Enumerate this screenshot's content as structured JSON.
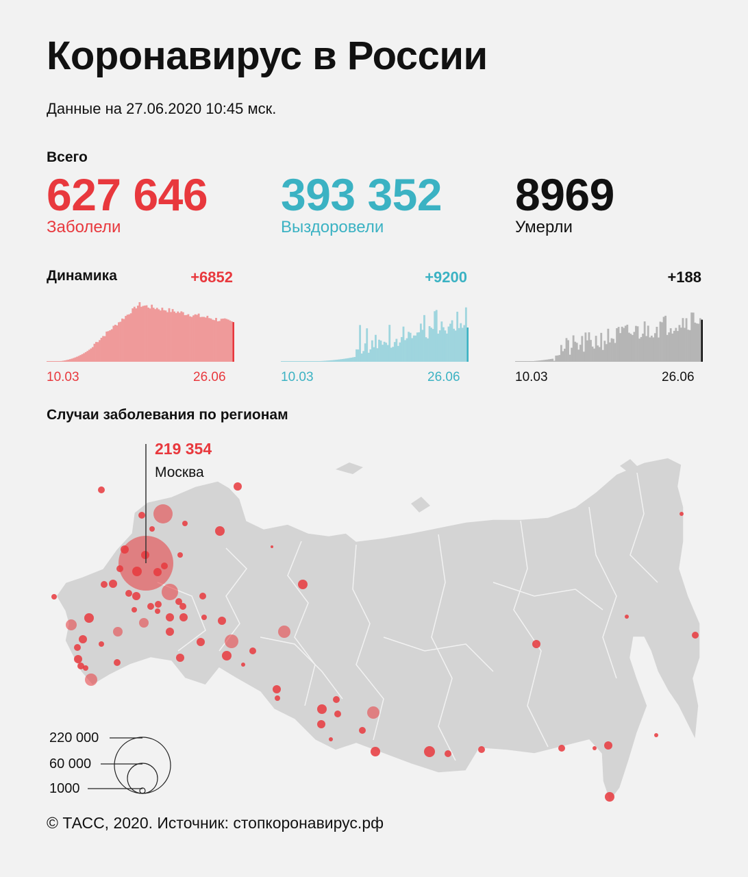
{
  "title": "Коронавирус в России",
  "subtitle": "Данные на 27.06.2020 10:45 мск.",
  "totals_label": "Всего",
  "totals": {
    "cases": {
      "value": "627 646",
      "label": "Заболели",
      "color": "#e8383d"
    },
    "recovered": {
      "value": "393 352",
      "label": "Выздоровели",
      "color": "#3bb2c3"
    },
    "deaths": {
      "value": "8969",
      "label": "Умерли",
      "color": "#111111"
    }
  },
  "dynamics_label": "Динамика",
  "dynamics": {
    "cases": {
      "delta": "+6852",
      "start": "10.03",
      "end": "26.06",
      "fill": "#ef9a9a",
      "accent": "#e8383d"
    },
    "recovered": {
      "delta": "+9200",
      "start": "10.03",
      "end": "26.06",
      "fill": "#9fd5de",
      "accent": "#3bb2c3"
    },
    "deaths": {
      "delta": "+188",
      "start": "10.03",
      "end": "26.06",
      "fill": "#b5b5b5",
      "accent": "#111111"
    }
  },
  "map": {
    "title": "Случаи заболевания по регионам",
    "land_color": "#d4d4d4",
    "marker_color": "#e8383d",
    "moscow": {
      "value": "219 354",
      "name": "Москва"
    },
    "legend": [
      "220 000",
      "60 000",
      "1000"
    ]
  },
  "footer": "© ТАСС, 2020. Источник: стопкоронавирус.рф"
}
